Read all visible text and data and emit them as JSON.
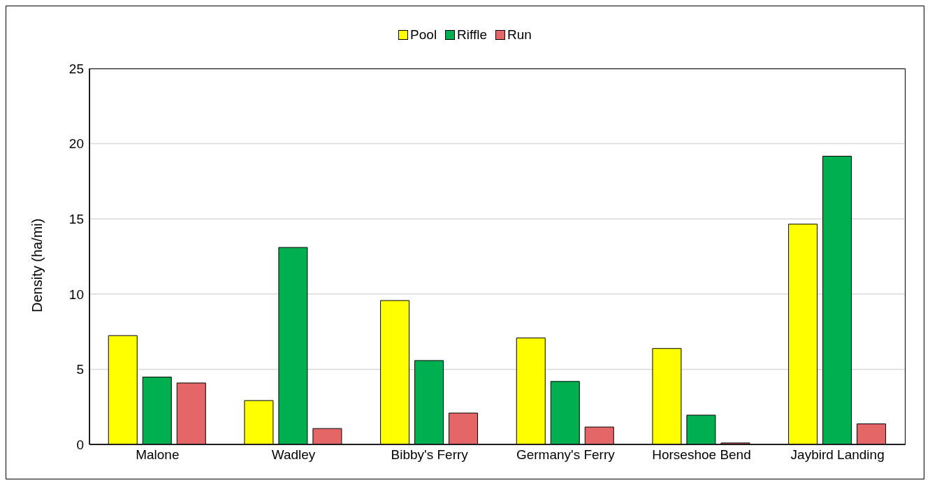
{
  "chart_data": {
    "type": "bar",
    "ylabel": "Density (ha/mi)",
    "categories": [
      "Malone",
      "Wadley",
      "Bibby's Ferry",
      "Germany's Ferry",
      "Horseshoe Bend",
      "Jaybird Landing"
    ],
    "series": [
      {
        "name": "Pool",
        "color": "#ffff00",
        "values": [
          7.24,
          2.92,
          9.57,
          7.08,
          6.38,
          14.65
        ]
      },
      {
        "name": "Riffle",
        "color": "#00b050",
        "values": [
          4.48,
          13.1,
          5.58,
          4.19,
          1.95,
          19.17
        ]
      },
      {
        "name": "Run",
        "color": "#e46666",
        "values": [
          4.09,
          1.06,
          2.09,
          1.16,
          0.1,
          1.37
        ]
      }
    ],
    "ylim": [
      0,
      25
    ],
    "yticks": [
      0,
      5,
      10,
      15,
      20,
      25
    ],
    "grid": "y",
    "legend": "top"
  }
}
